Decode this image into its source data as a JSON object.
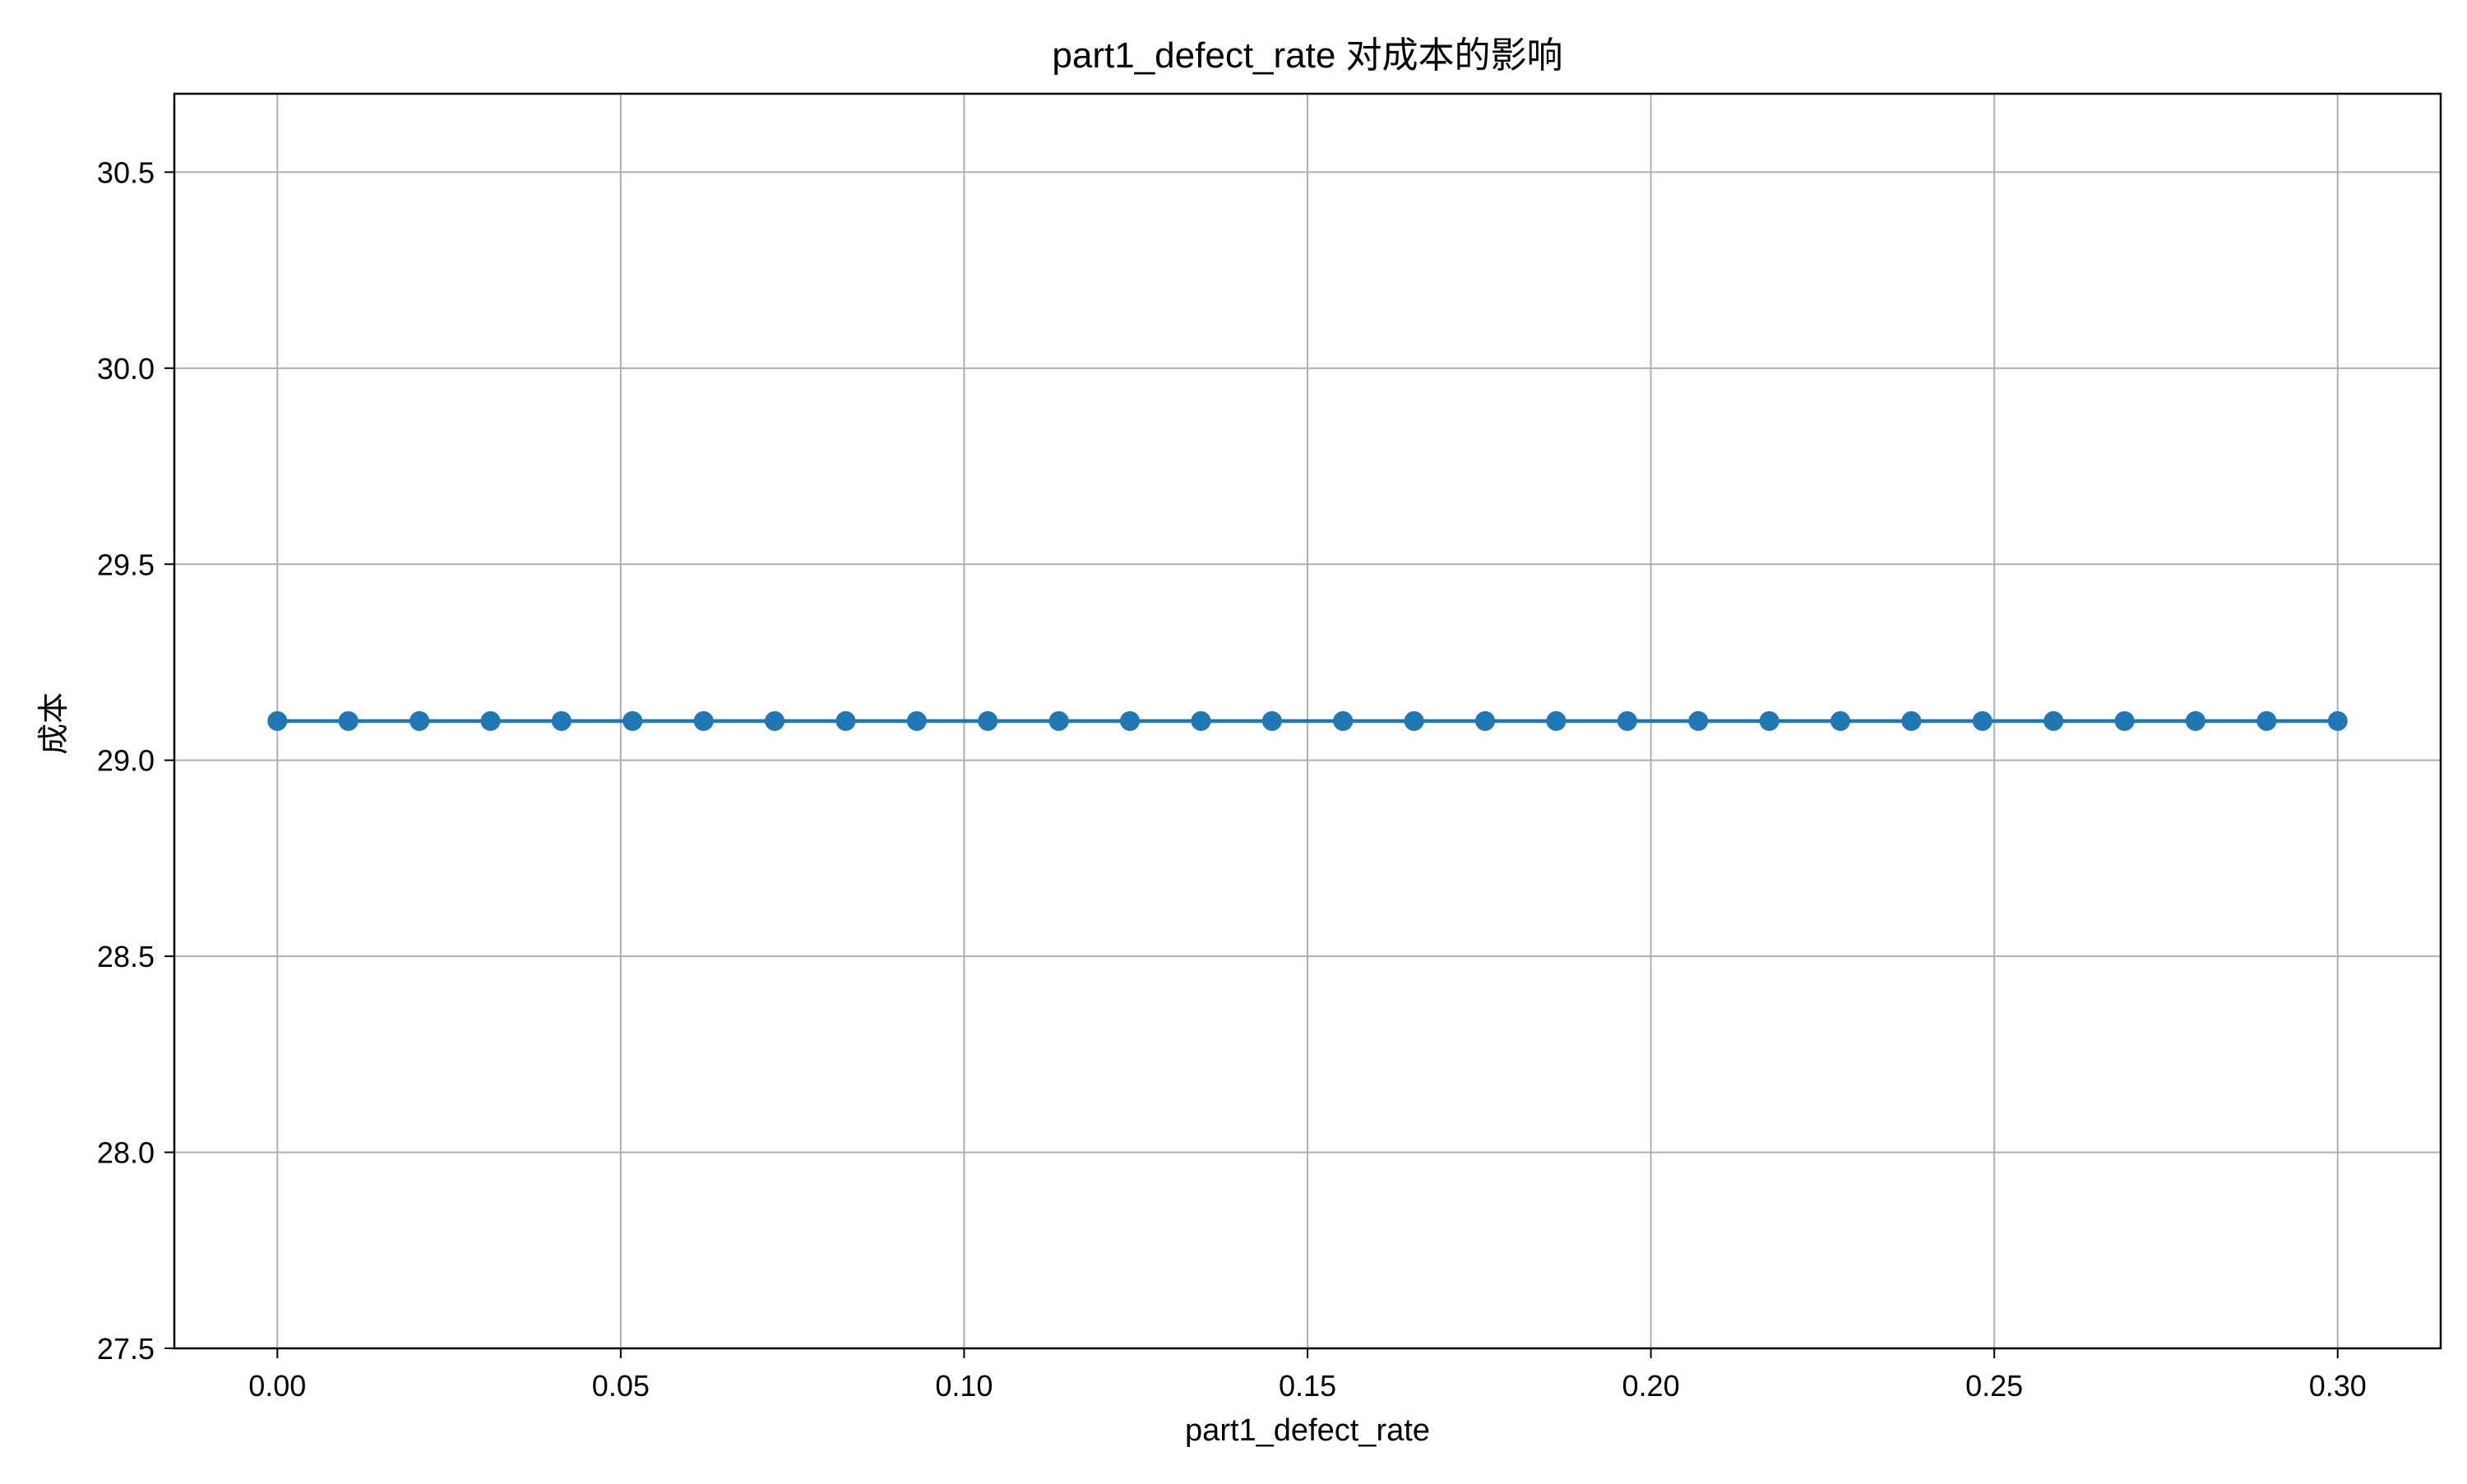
{
  "chart_data": {
    "type": "line",
    "title": "part1_defect_rate 对成本的影响",
    "xlabel": "part1_defect_rate",
    "ylabel": "成本",
    "xlim": [
      -0.015,
      0.315
    ],
    "ylim": [
      27.5,
      30.7
    ],
    "xticks": [
      0.0,
      0.05,
      0.1,
      0.15,
      0.2,
      0.25,
      0.3
    ],
    "xtick_labels": [
      "0.00",
      "0.05",
      "0.10",
      "0.15",
      "0.20",
      "0.25",
      "0.30"
    ],
    "yticks": [
      27.5,
      28.0,
      28.5,
      29.0,
      29.5,
      30.0,
      30.5
    ],
    "ytick_labels": [
      "27.5",
      "28.0",
      "28.5",
      "29.0",
      "29.5",
      "30.0",
      "30.5"
    ],
    "grid": true,
    "marker": "circle",
    "color": "#1f77b4",
    "series": [
      {
        "x": [
          0.0,
          0.010345,
          0.02069,
          0.031034,
          0.041379,
          0.051724,
          0.062069,
          0.072414,
          0.082759,
          0.093103,
          0.103448,
          0.113793,
          0.124138,
          0.134483,
          0.144828,
          0.155172,
          0.165517,
          0.175862,
          0.186207,
          0.196552,
          0.206897,
          0.217241,
          0.227586,
          0.237931,
          0.248276,
          0.258621,
          0.268966,
          0.27931,
          0.289655,
          0.3
        ],
        "y": [
          29.1,
          29.1,
          29.1,
          29.1,
          29.1,
          29.1,
          29.1,
          29.1,
          29.1,
          29.1,
          29.1,
          29.1,
          29.1,
          29.1,
          29.1,
          29.1,
          29.1,
          29.1,
          29.1,
          29.1,
          29.1,
          29.1,
          29.1,
          29.1,
          29.1,
          29.1,
          29.1,
          29.1,
          29.1,
          29.1
        ]
      }
    ]
  }
}
